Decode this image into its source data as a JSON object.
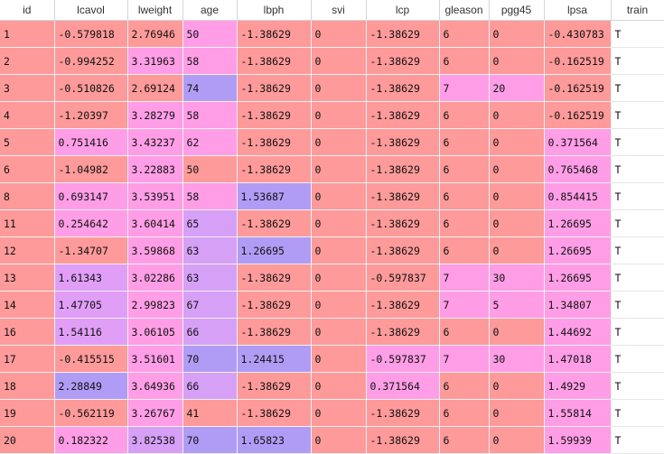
{
  "columns": [
    "id",
    "lcavol",
    "lweight",
    "age",
    "lbph",
    "svi",
    "lcp",
    "gleason",
    "pgg45",
    "lpsa",
    "train"
  ],
  "rows": [
    [
      "1",
      "-0.579818",
      "2.76946",
      "50",
      "-1.38629",
      "0",
      "-1.38629",
      "6",
      "0",
      "-0.430783",
      "T"
    ],
    [
      "2",
      "-0.994252",
      "3.31963",
      "58",
      "-1.38629",
      "0",
      "-1.38629",
      "6",
      "0",
      "-0.162519",
      "T"
    ],
    [
      "3",
      "-0.510826",
      "2.69124",
      "74",
      "-1.38629",
      "0",
      "-1.38629",
      "7",
      "20",
      "-0.162519",
      "T"
    ],
    [
      "4",
      "-1.20397",
      "3.28279",
      "58",
      "-1.38629",
      "0",
      "-1.38629",
      "6",
      "0",
      "-0.162519",
      "T"
    ],
    [
      "5",
      "0.751416",
      "3.43237",
      "62",
      "-1.38629",
      "0",
      "-1.38629",
      "6",
      "0",
      "0.371564",
      "T"
    ],
    [
      "6",
      "-1.04982",
      "3.22883",
      "50",
      "-1.38629",
      "0",
      "-1.38629",
      "6",
      "0",
      "0.765468",
      "T"
    ],
    [
      "8",
      "0.693147",
      "3.53951",
      "58",
      "1.53687",
      "0",
      "-1.38629",
      "6",
      "0",
      "0.854415",
      "T"
    ],
    [
      "11",
      "0.254642",
      "3.60414",
      "65",
      "-1.38629",
      "0",
      "-1.38629",
      "6",
      "0",
      "1.26695",
      "T"
    ],
    [
      "12",
      "-1.34707",
      "3.59868",
      "63",
      "1.26695",
      "0",
      "-1.38629",
      "6",
      "0",
      "1.26695",
      "T"
    ],
    [
      "13",
      "1.61343",
      "3.02286",
      "63",
      "-1.38629",
      "0",
      "-0.597837",
      "7",
      "30",
      "1.26695",
      "T"
    ],
    [
      "14",
      "1.47705",
      "2.99823",
      "67",
      "-1.38629",
      "0",
      "-1.38629",
      "7",
      "5",
      "1.34807",
      "T"
    ],
    [
      "16",
      "1.54116",
      "3.06105",
      "66",
      "-1.38629",
      "0",
      "-1.38629",
      "6",
      "0",
      "1.44692",
      "T"
    ],
    [
      "17",
      "-0.415515",
      "3.51601",
      "70",
      "1.24415",
      "0",
      "-0.597837",
      "7",
      "30",
      "1.47018",
      "T"
    ],
    [
      "18",
      "2.28849",
      "3.64936",
      "66",
      "-1.38629",
      "0",
      "0.371564",
      "6",
      "0",
      "1.4929",
      "T"
    ],
    [
      "19",
      "-0.562119",
      "3.26767",
      "41",
      "-1.38629",
      "0",
      "-1.38629",
      "6",
      "0",
      "1.55814",
      "T"
    ],
    [
      "20",
      "0.182322",
      "3.82538",
      "70",
      "1.65823",
      "0",
      "-1.38629",
      "6",
      "0",
      "1.59939",
      "T"
    ]
  ],
  "cell_colors": [
    [
      "#FF9A9A",
      "#FF9A9A",
      "#FF9A9A",
      "#FF9EE6",
      "#FF9A9A",
      "#FF9A9A",
      "#FF9A9A",
      "#FF9A9A",
      "#FF9A9A",
      "#FF9A9A"
    ],
    [
      "#FF9A9A",
      "#FF9A9A",
      "#FF9EE6",
      "#FF9EE6",
      "#FF9A9A",
      "#FF9A9A",
      "#FF9A9A",
      "#FF9A9A",
      "#FF9A9A",
      "#FF9A9A"
    ],
    [
      "#FF9A9A",
      "#FF9A9A",
      "#FF9A9A",
      "#B19CF5",
      "#FF9A9A",
      "#FF9A9A",
      "#FF9A9A",
      "#FF9EE6",
      "#FF9EE6",
      "#FF9A9A"
    ],
    [
      "#FF9A9A",
      "#FF9A9A",
      "#FF9EE6",
      "#FF9EE6",
      "#FF9A9A",
      "#FF9A9A",
      "#FF9A9A",
      "#FF9A9A",
      "#FF9A9A",
      "#FF9A9A"
    ],
    [
      "#FF9A9A",
      "#FF9EE6",
      "#FF9EE6",
      "#FF9EE6",
      "#FF9A9A",
      "#FF9A9A",
      "#FF9A9A",
      "#FF9A9A",
      "#FF9A9A",
      "#FF9EE6"
    ],
    [
      "#FF9A9A",
      "#FF9A9A",
      "#FF9EE6",
      "#FF9A9A",
      "#FF9A9A",
      "#FF9A9A",
      "#FF9A9A",
      "#FF9A9A",
      "#FF9A9A",
      "#FF9EE6"
    ],
    [
      "#FF9A9A",
      "#FF9EE6",
      "#FF9EE6",
      "#FF9EE6",
      "#B19CF5",
      "#FF9A9A",
      "#FF9A9A",
      "#FF9A9A",
      "#FF9A9A",
      "#FF9EE6"
    ],
    [
      "#FF9A9A",
      "#FF9EE6",
      "#FF9EE6",
      "#D6A0F7",
      "#FF9A9A",
      "#FF9A9A",
      "#FF9A9A",
      "#FF9A9A",
      "#FF9A9A",
      "#FF9EE6"
    ],
    [
      "#FF9A9A",
      "#FF9A9A",
      "#FF9EE6",
      "#D6A0F7",
      "#B19CF5",
      "#FF9A9A",
      "#FF9A9A",
      "#FF9A9A",
      "#FF9A9A",
      "#FF9EE6"
    ],
    [
      "#FF9A9A",
      "#E09EF7",
      "#FF9EE6",
      "#D6A0F7",
      "#FF9A9A",
      "#FF9A9A",
      "#FF9A9A",
      "#FF9EE6",
      "#FF9EE6",
      "#FF9EE6"
    ],
    [
      "#FF9A9A",
      "#E09EF7",
      "#FF9EE6",
      "#D6A0F7",
      "#FF9A9A",
      "#FF9A9A",
      "#FF9A9A",
      "#FF9EE6",
      "#FF9EE6",
      "#FF9EE6"
    ],
    [
      "#FF9A9A",
      "#E09EF7",
      "#FF9EE6",
      "#D6A0F7",
      "#FF9A9A",
      "#FF9A9A",
      "#FF9A9A",
      "#FF9A9A",
      "#FF9A9A",
      "#FF9EE6"
    ],
    [
      "#FF9A9A",
      "#FF9A9A",
      "#FF9EE6",
      "#B19CF5",
      "#B19CF5",
      "#FF9A9A",
      "#FF9EE6",
      "#FF9EE6",
      "#FF9EE6",
      "#FF9EE6"
    ],
    [
      "#FF9A9A",
      "#B19CF5",
      "#FF9EE6",
      "#D6A0F7",
      "#FF9A9A",
      "#FF9A9A",
      "#FF9EE6",
      "#FF9A9A",
      "#FF9A9A",
      "#FF9EE6"
    ],
    [
      "#FF9A9A",
      "#FF9A9A",
      "#FF9EE6",
      "#FF9A9A",
      "#FF9A9A",
      "#FF9A9A",
      "#FF9A9A",
      "#FF9A9A",
      "#FF9A9A",
      "#FF9EE6"
    ],
    [
      "#FF9A9A",
      "#FF9EE6",
      "#D6A0F7",
      "#B19CF5",
      "#B19CF5",
      "#FF9A9A",
      "#FF9A9A",
      "#FF9A9A",
      "#FF9A9A",
      "#FF9EE6"
    ]
  ]
}
